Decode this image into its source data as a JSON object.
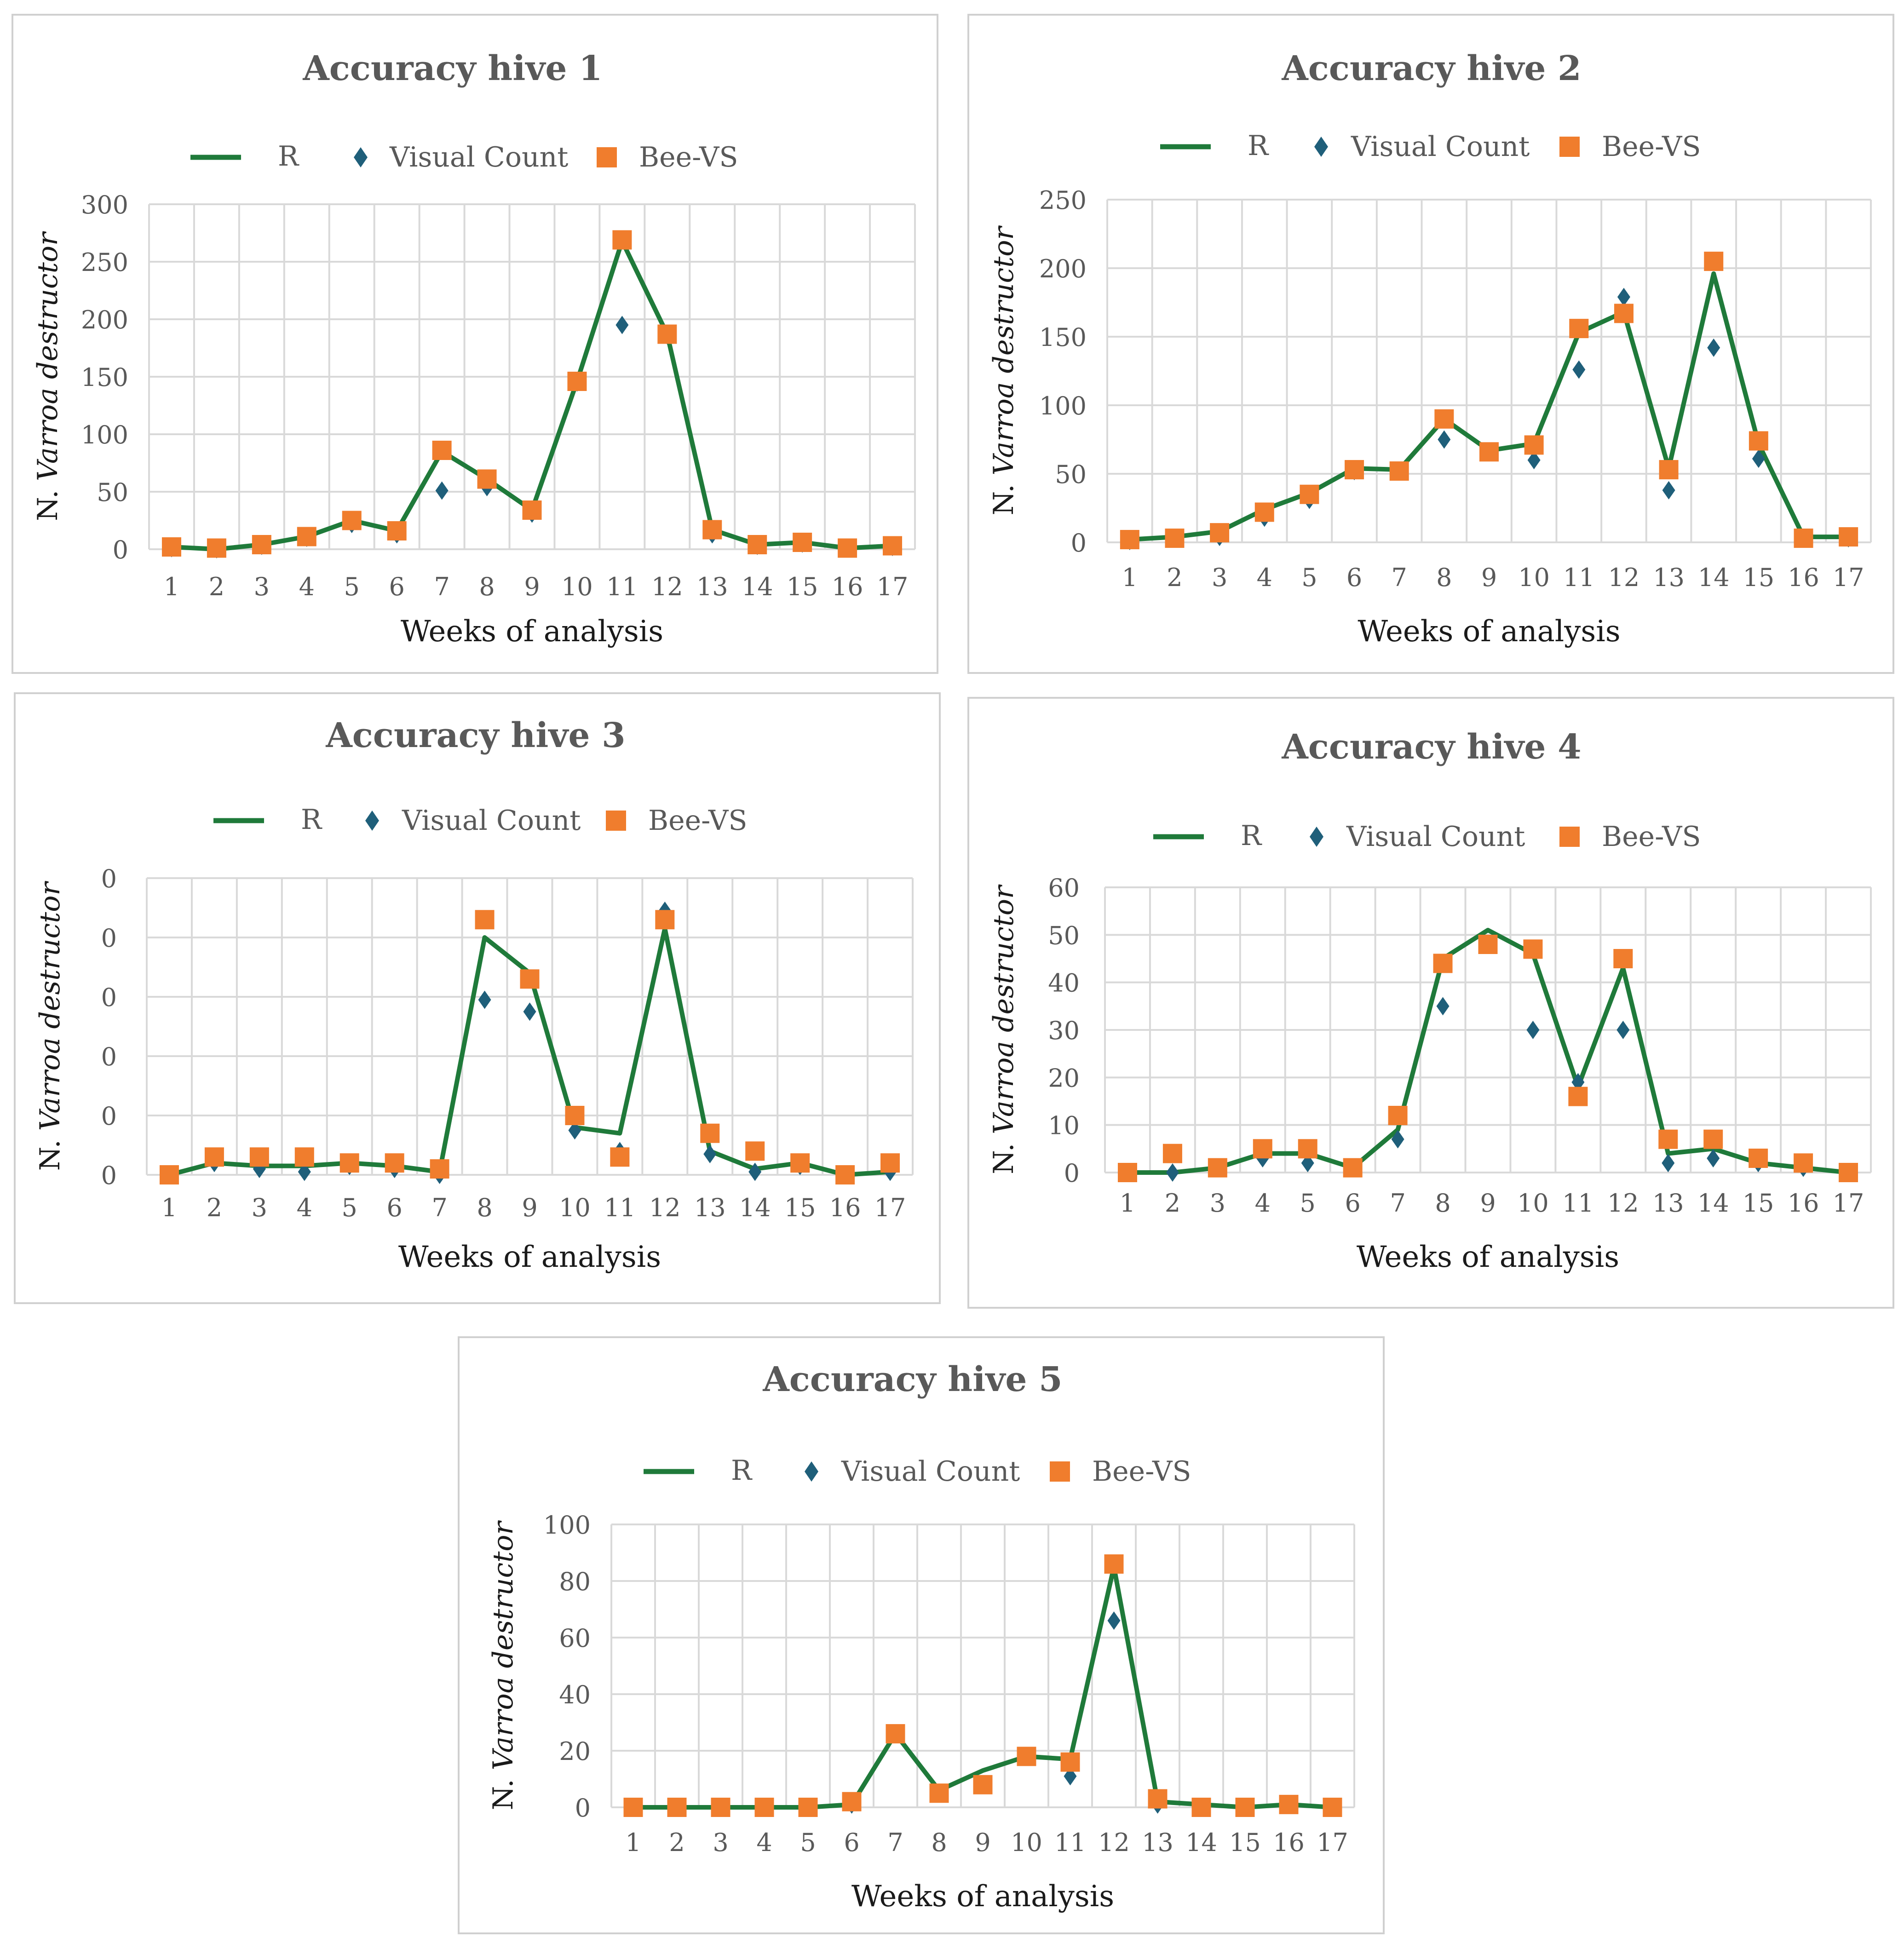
{
  "colors": {
    "r_line": "#1f7a3a",
    "visual_count": "#1f5f7a",
    "bee_vs": "#f07d2d",
    "grid": "#d9d9d9",
    "text": "#595959"
  },
  "legend": {
    "r": "R",
    "visual": "Visual Count",
    "bee": "Bee-VS"
  },
  "chart_data": [
    {
      "type": "line",
      "title": "Accuracy hive 1",
      "xlabel": "Weeks of analysis",
      "ylabel_prefix": "N. ",
      "ylabel_italic": "Varroa destructor",
      "x": [
        1,
        2,
        3,
        4,
        5,
        6,
        7,
        8,
        9,
        10,
        11,
        12,
        13,
        14,
        15,
        16,
        17
      ],
      "yticks": [
        "0",
        "50",
        "100",
        "150",
        "200",
        "250",
        "300"
      ],
      "ylim": [
        0,
        300
      ],
      "series": [
        {
          "name": "R",
          "values": [
            2,
            0,
            4,
            11,
            25,
            16,
            85,
            61,
            34,
            146,
            268,
            187,
            17,
            4,
            6,
            1,
            3
          ]
        },
        {
          "name": "Visual Count",
          "values": [
            1,
            0,
            3,
            10,
            22,
            13,
            51,
            54,
            31,
            145,
            195,
            186,
            13,
            3,
            5,
            1,
            2
          ]
        },
        {
          "name": "Bee-VS",
          "values": [
            2,
            1,
            4,
            11,
            25,
            16,
            86,
            61,
            34,
            146,
            269,
            187,
            17,
            4,
            6,
            1,
            3
          ]
        }
      ]
    },
    {
      "type": "line",
      "title": "Accuracy hive 2",
      "xlabel": "Weeks of analysis",
      "ylabel_prefix": "N. ",
      "ylabel_italic": "Varroa destructor",
      "x": [
        1,
        2,
        3,
        4,
        5,
        6,
        7,
        8,
        9,
        10,
        11,
        12,
        13,
        14,
        15,
        16,
        17
      ],
      "yticks": [
        "0",
        "50",
        "100",
        "150",
        "200",
        "250"
      ],
      "ylim": [
        0,
        250
      ],
      "series": [
        {
          "name": "R",
          "values": [
            2,
            4,
            8,
            24,
            36,
            54,
            53,
            90,
            67,
            72,
            153,
            168,
            54,
            196,
            72,
            4,
            4
          ]
        },
        {
          "name": "Visual Count",
          "values": [
            1,
            3,
            4,
            18,
            31,
            52,
            52,
            75,
            66,
            60,
            126,
            179,
            38,
            142,
            61,
            3,
            3
          ]
        },
        {
          "name": "Bee-VS",
          "values": [
            2,
            3,
            7,
            22,
            35,
            53,
            52,
            90,
            66,
            71,
            156,
            167,
            53,
            205,
            74,
            3,
            4
          ]
        }
      ]
    },
    {
      "type": "line",
      "title": "Accuracy hive 3",
      "xlabel": "Weeks of analysis",
      "ylabel_prefix": "N. ",
      "ylabel_italic": "Varroa destructor",
      "x": [
        1,
        2,
        3,
        4,
        5,
        6,
        7,
        8,
        9,
        10,
        11,
        12,
        13,
        14,
        15,
        16,
        17
      ],
      "yticks": [
        "0",
        "0",
        "0",
        "0",
        "0",
        "0"
      ],
      "ylim": [
        0,
        100
      ],
      "series": [
        {
          "name": "R",
          "values": [
            0,
            4,
            3,
            3,
            4,
            3,
            1,
            80,
            68,
            16,
            14,
            83,
            8,
            2,
            4,
            0,
            1
          ]
        },
        {
          "name": "Visual Count",
          "values": [
            0,
            4,
            2,
            1,
            3,
            2,
            0,
            59,
            55,
            15,
            8,
            89,
            7,
            1,
            3,
            0,
            1
          ]
        },
        {
          "name": "Bee-VS",
          "values": [
            0,
            6,
            6,
            6,
            4,
            4,
            2,
            86,
            66,
            20,
            6,
            86,
            14,
            8,
            4,
            0,
            4
          ]
        }
      ]
    },
    {
      "type": "line",
      "title": "Accuracy hive 4",
      "xlabel": "Weeks of analysis",
      "ylabel_prefix": "N. ",
      "ylabel_italic": "Varroa destructor",
      "x": [
        1,
        2,
        3,
        4,
        5,
        6,
        7,
        8,
        9,
        10,
        11,
        12,
        13,
        14,
        15,
        16,
        17
      ],
      "yticks": [
        "0",
        "10",
        "20",
        "30",
        "40",
        "50",
        "60"
      ],
      "ylim": [
        0,
        60
      ],
      "series": [
        {
          "name": "R",
          "values": [
            0,
            0,
            1,
            4,
            4,
            1,
            9,
            45,
            51,
            46,
            18,
            43,
            4,
            5,
            2,
            1,
            0
          ]
        },
        {
          "name": "Visual Count",
          "values": [
            0,
            0,
            1,
            3,
            2,
            1,
            7,
            35,
            48,
            30,
            19,
            30,
            2,
            3,
            2,
            1,
            0
          ]
        },
        {
          "name": "Bee-VS",
          "values": [
            0,
            4,
            1,
            5,
            5,
            1,
            12,
            44,
            48,
            47,
            16,
            45,
            7,
            7,
            3,
            2,
            0
          ]
        }
      ]
    },
    {
      "type": "line",
      "title": "Accuracy hive 5",
      "xlabel": "Weeks of analysis",
      "ylabel_prefix": "N. ",
      "ylabel_italic": "Varroa destructor",
      "x": [
        1,
        2,
        3,
        4,
        5,
        6,
        7,
        8,
        9,
        10,
        11,
        12,
        13,
        14,
        15,
        16,
        17
      ],
      "yticks": [
        "0",
        "20",
        "40",
        "60",
        "80",
        "100"
      ],
      "ylim": [
        0,
        100
      ],
      "series": [
        {
          "name": "R",
          "values": [
            0,
            0,
            0,
            0,
            0,
            1,
            26,
            6,
            13,
            18,
            17,
            85,
            2,
            1,
            0,
            1,
            0
          ]
        },
        {
          "name": "Visual Count",
          "values": [
            0,
            0,
            0,
            0,
            0,
            1,
            26,
            5,
            8,
            18,
            11,
            66,
            1,
            0,
            0,
            1,
            0
          ]
        },
        {
          "name": "Bee-VS",
          "values": [
            0,
            0,
            0,
            0,
            0,
            2,
            26,
            5,
            8,
            18,
            16,
            86,
            3,
            0,
            0,
            1,
            0
          ]
        }
      ]
    }
  ]
}
